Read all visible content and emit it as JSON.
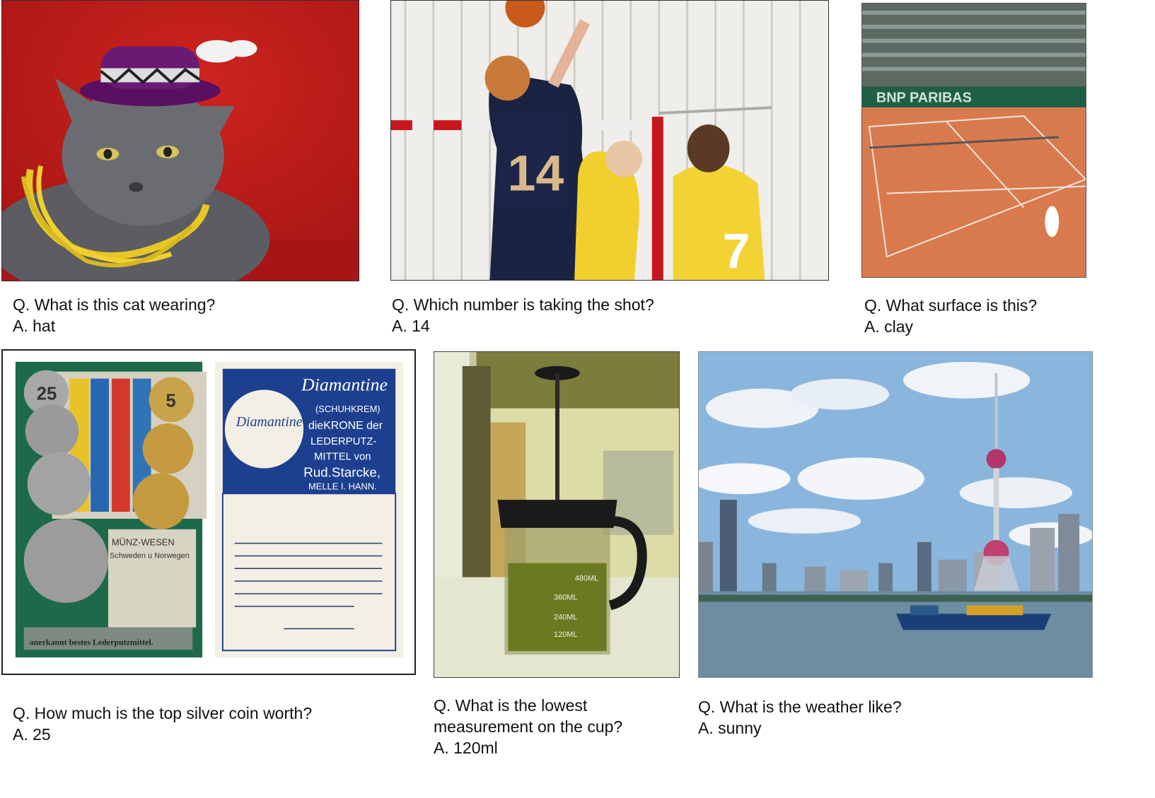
{
  "panels": [
    {
      "question": "Q. What is this cat wearing?",
      "answer": "A. hat"
    },
    {
      "question": "Q. Which number is taking the shot?",
      "answer": "A. 14"
    },
    {
      "question": "Q. What surface is this?",
      "answer": "A. clay"
    },
    {
      "question": "Q. How much is the top silver coin worth?",
      "answer": "A. 25"
    },
    {
      "question_line1": "Q. What is the lowest",
      "question_line2": "measurement on the cup?",
      "answer": "A. 120ml"
    },
    {
      "question": "Q. What is the weather like?",
      "answer": "A. sunny"
    }
  ],
  "image_text": {
    "jersey_number": "14",
    "jersey_number_2": "7",
    "banner": "BNP PARIBAS",
    "card_brand": "Diamantine",
    "card_sub1": "(SCHUHKREM)",
    "card_sub2": "dieKRONE der",
    "card_sub3": "LEDERPUTZ-",
    "card_sub4": "MITTEL von",
    "card_sub5": "Rud.Starcke,",
    "card_sub6": "MELLE I. HANN.",
    "card_left_title": "MÜNZ-WESEN",
    "card_left_sub": "Schweden u Norwegen",
    "card_left_footer": "anerkannt bestes Lederputzmittel.",
    "coin_25": "25",
    "coin_5": "5",
    "cup_480": "480ML",
    "cup_360": "360ML",
    "cup_240": "240ML",
    "cup_120": "120ML"
  },
  "colors": {
    "cat_bg": "#c41c1a",
    "clay": "#d97a4e",
    "card_blue": "#1d3f8f",
    "sky": "#8ab6de",
    "river": "#6c8ea0"
  }
}
